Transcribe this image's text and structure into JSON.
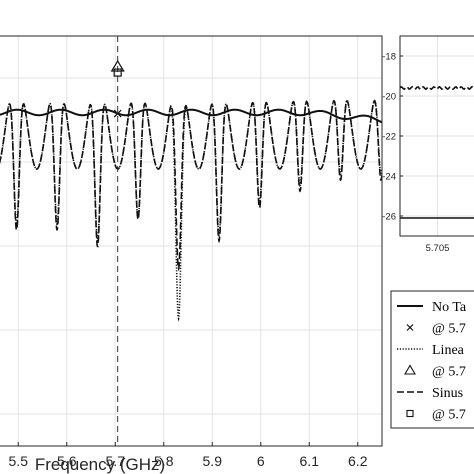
{
  "chart_data": [
    {
      "type": "line",
      "xlabel": "Frequency (GHz)",
      "ylabel": "",
      "xlim": [
        5.45,
        6.25
      ],
      "ylim": [
        -34,
        3
      ],
      "xticks": [
        5.5,
        5.6,
        5.7,
        5.8,
        5.9,
        6.0,
        6.1,
        6.2
      ],
      "xtick_labels": [
        "5.5",
        "5.6",
        "5.7",
        "5.8",
        "5.9",
        "6",
        "6.1",
        "6.2"
      ],
      "grid": true,
      "marker_frequency": 5.705,
      "series": [
        {
          "name": "No Ta",
          "style": "solid",
          "shape": "flat",
          "base": -3.9,
          "ripple": 0.25,
          "end_slope": -0.7
        },
        {
          "name": "Linea",
          "style": "dotted",
          "shape": "periodic-notch",
          "peak": 0.0,
          "period": 0.0835,
          "phase": 5.58,
          "notch_depths": [
            -23,
            -24.5,
            -22.5,
            -31.5,
            -24,
            -21,
            -19.5,
            -18.5
          ]
        },
        {
          "name": "Sinus",
          "style": "dashed",
          "shape": "periodic-notch",
          "peak": 0.0,
          "period": 0.0835,
          "phase": 5.58,
          "notch_depths": [
            -23.5,
            -25,
            -22.5,
            -27,
            -24.5,
            -21.5,
            -20,
            -19
          ]
        }
      ],
      "markers": [
        {
          "series": "No Ta",
          "symbol": "x",
          "x": 5.705,
          "y": -4.0
        },
        {
          "series": "Linea",
          "symbol": "triangle",
          "x": 5.705,
          "y": 0.2
        },
        {
          "series": "Sinus",
          "symbol": "square",
          "x": 5.705,
          "y": -0.3
        }
      ]
    },
    {
      "type": "line",
      "inset": true,
      "xlim": [
        5.7,
        5.712
      ],
      "ylim": [
        -27,
        -17
      ],
      "yticks": [
        -18,
        -20,
        -22,
        -24,
        -26
      ],
      "ytick_labels": [
        "-18",
        "-20",
        "-22",
        "-24",
        "-26"
      ],
      "xticks": [
        5.705
      ],
      "xtick_labels": [
        "5.705"
      ],
      "grid": true,
      "series": [
        {
          "name": "upper",
          "style": "dashed",
          "value": -19.6
        },
        {
          "name": "lower",
          "style": "solid",
          "value": -26.1
        }
      ]
    }
  ],
  "legend": {
    "placement": "bottom-right",
    "entries": [
      {
        "label": "No Ta",
        "style": "solid"
      },
      {
        "label": "@ 5.7",
        "symbol": "x"
      },
      {
        "label": "Linea",
        "style": "dotted"
      },
      {
        "label": "@ 5.7",
        "symbol": "triangle"
      },
      {
        "label": "Sinus",
        "style": "dashed"
      },
      {
        "label": "@ 5.7",
        "symbol": "square"
      }
    ]
  }
}
